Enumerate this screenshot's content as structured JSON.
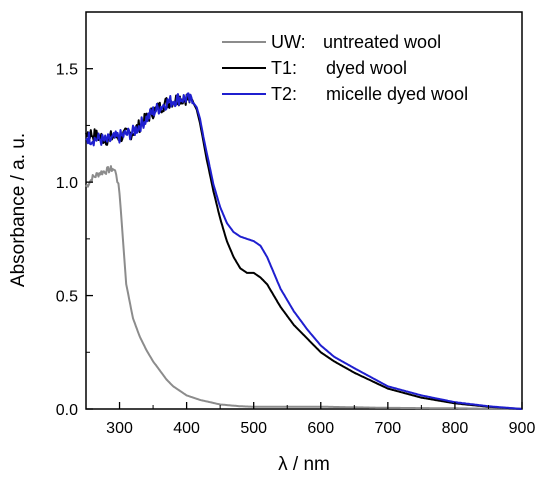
{
  "chart_data": {
    "type": "line",
    "xlabel": "λ / nm",
    "ylabel": "Absorbance / a. u.",
    "xlim": [
      250,
      900
    ],
    "ylim": [
      0,
      1.75
    ],
    "xticks": [
      "300",
      "400",
      "500",
      "600",
      "700",
      "800",
      "900"
    ],
    "xtick_values": [
      300,
      400,
      500,
      600,
      700,
      800,
      900
    ],
    "yticks": [
      "0.0",
      "0.5",
      "1.0",
      "1.5"
    ],
    "ytick_values": [
      0.0,
      0.5,
      1.0,
      1.5
    ],
    "grid": false,
    "legend_position": "top-right",
    "series": [
      {
        "name": "UW:",
        "legend_desc": "untreated wool",
        "color": "#8c8c8c",
        "x": [
          250,
          260,
          270,
          280,
          290,
          295,
          300,
          305,
          310,
          320,
          330,
          340,
          350,
          360,
          370,
          380,
          400,
          420,
          450,
          480,
          500,
          550,
          600,
          700,
          800,
          900
        ],
        "y": [
          0.98,
          1.02,
          1.04,
          1.05,
          1.06,
          1.04,
          0.95,
          0.75,
          0.55,
          0.4,
          0.32,
          0.26,
          0.21,
          0.17,
          0.13,
          0.1,
          0.06,
          0.04,
          0.02,
          0.012,
          0.01,
          0.01,
          0.01,
          0.005,
          0.003,
          0.0
        ]
      },
      {
        "name": "T1:",
        "legend_desc": "dyed wool",
        "color": "#000000",
        "x": [
          250,
          260,
          270,
          280,
          290,
          300,
          310,
          320,
          330,
          340,
          350,
          360,
          370,
          380,
          390,
          400,
          410,
          415,
          420,
          425,
          430,
          440,
          450,
          460,
          470,
          480,
          490,
          500,
          510,
          520,
          530,
          540,
          550,
          560,
          580,
          600,
          620,
          650,
          700,
          750,
          800,
          850,
          900
        ],
        "y": [
          1.22,
          1.21,
          1.2,
          1.19,
          1.2,
          1.2,
          1.21,
          1.22,
          1.25,
          1.28,
          1.31,
          1.33,
          1.35,
          1.36,
          1.37,
          1.37,
          1.35,
          1.32,
          1.26,
          1.18,
          1.1,
          0.96,
          0.84,
          0.74,
          0.67,
          0.62,
          0.6,
          0.6,
          0.58,
          0.55,
          0.5,
          0.45,
          0.41,
          0.37,
          0.31,
          0.25,
          0.21,
          0.16,
          0.09,
          0.05,
          0.025,
          0.01,
          0.0
        ]
      },
      {
        "name": "T2:",
        "legend_desc": "micelle dyed wool",
        "color": "#1f1fcf",
        "x": [
          250,
          260,
          270,
          280,
          290,
          300,
          310,
          320,
          330,
          340,
          350,
          360,
          370,
          380,
          390,
          400,
          410,
          415,
          420,
          425,
          430,
          440,
          450,
          460,
          470,
          480,
          490,
          500,
          510,
          520,
          530,
          540,
          550,
          560,
          580,
          600,
          620,
          650,
          700,
          750,
          800,
          850,
          900
        ],
        "y": [
          1.2,
          1.19,
          1.19,
          1.18,
          1.19,
          1.2,
          1.21,
          1.22,
          1.25,
          1.28,
          1.31,
          1.33,
          1.35,
          1.36,
          1.37,
          1.37,
          1.35,
          1.33,
          1.28,
          1.2,
          1.13,
          0.99,
          0.89,
          0.82,
          0.78,
          0.76,
          0.75,
          0.74,
          0.72,
          0.67,
          0.6,
          0.53,
          0.48,
          0.43,
          0.35,
          0.28,
          0.23,
          0.18,
          0.1,
          0.06,
          0.03,
          0.012,
          0.0
        ]
      }
    ]
  }
}
